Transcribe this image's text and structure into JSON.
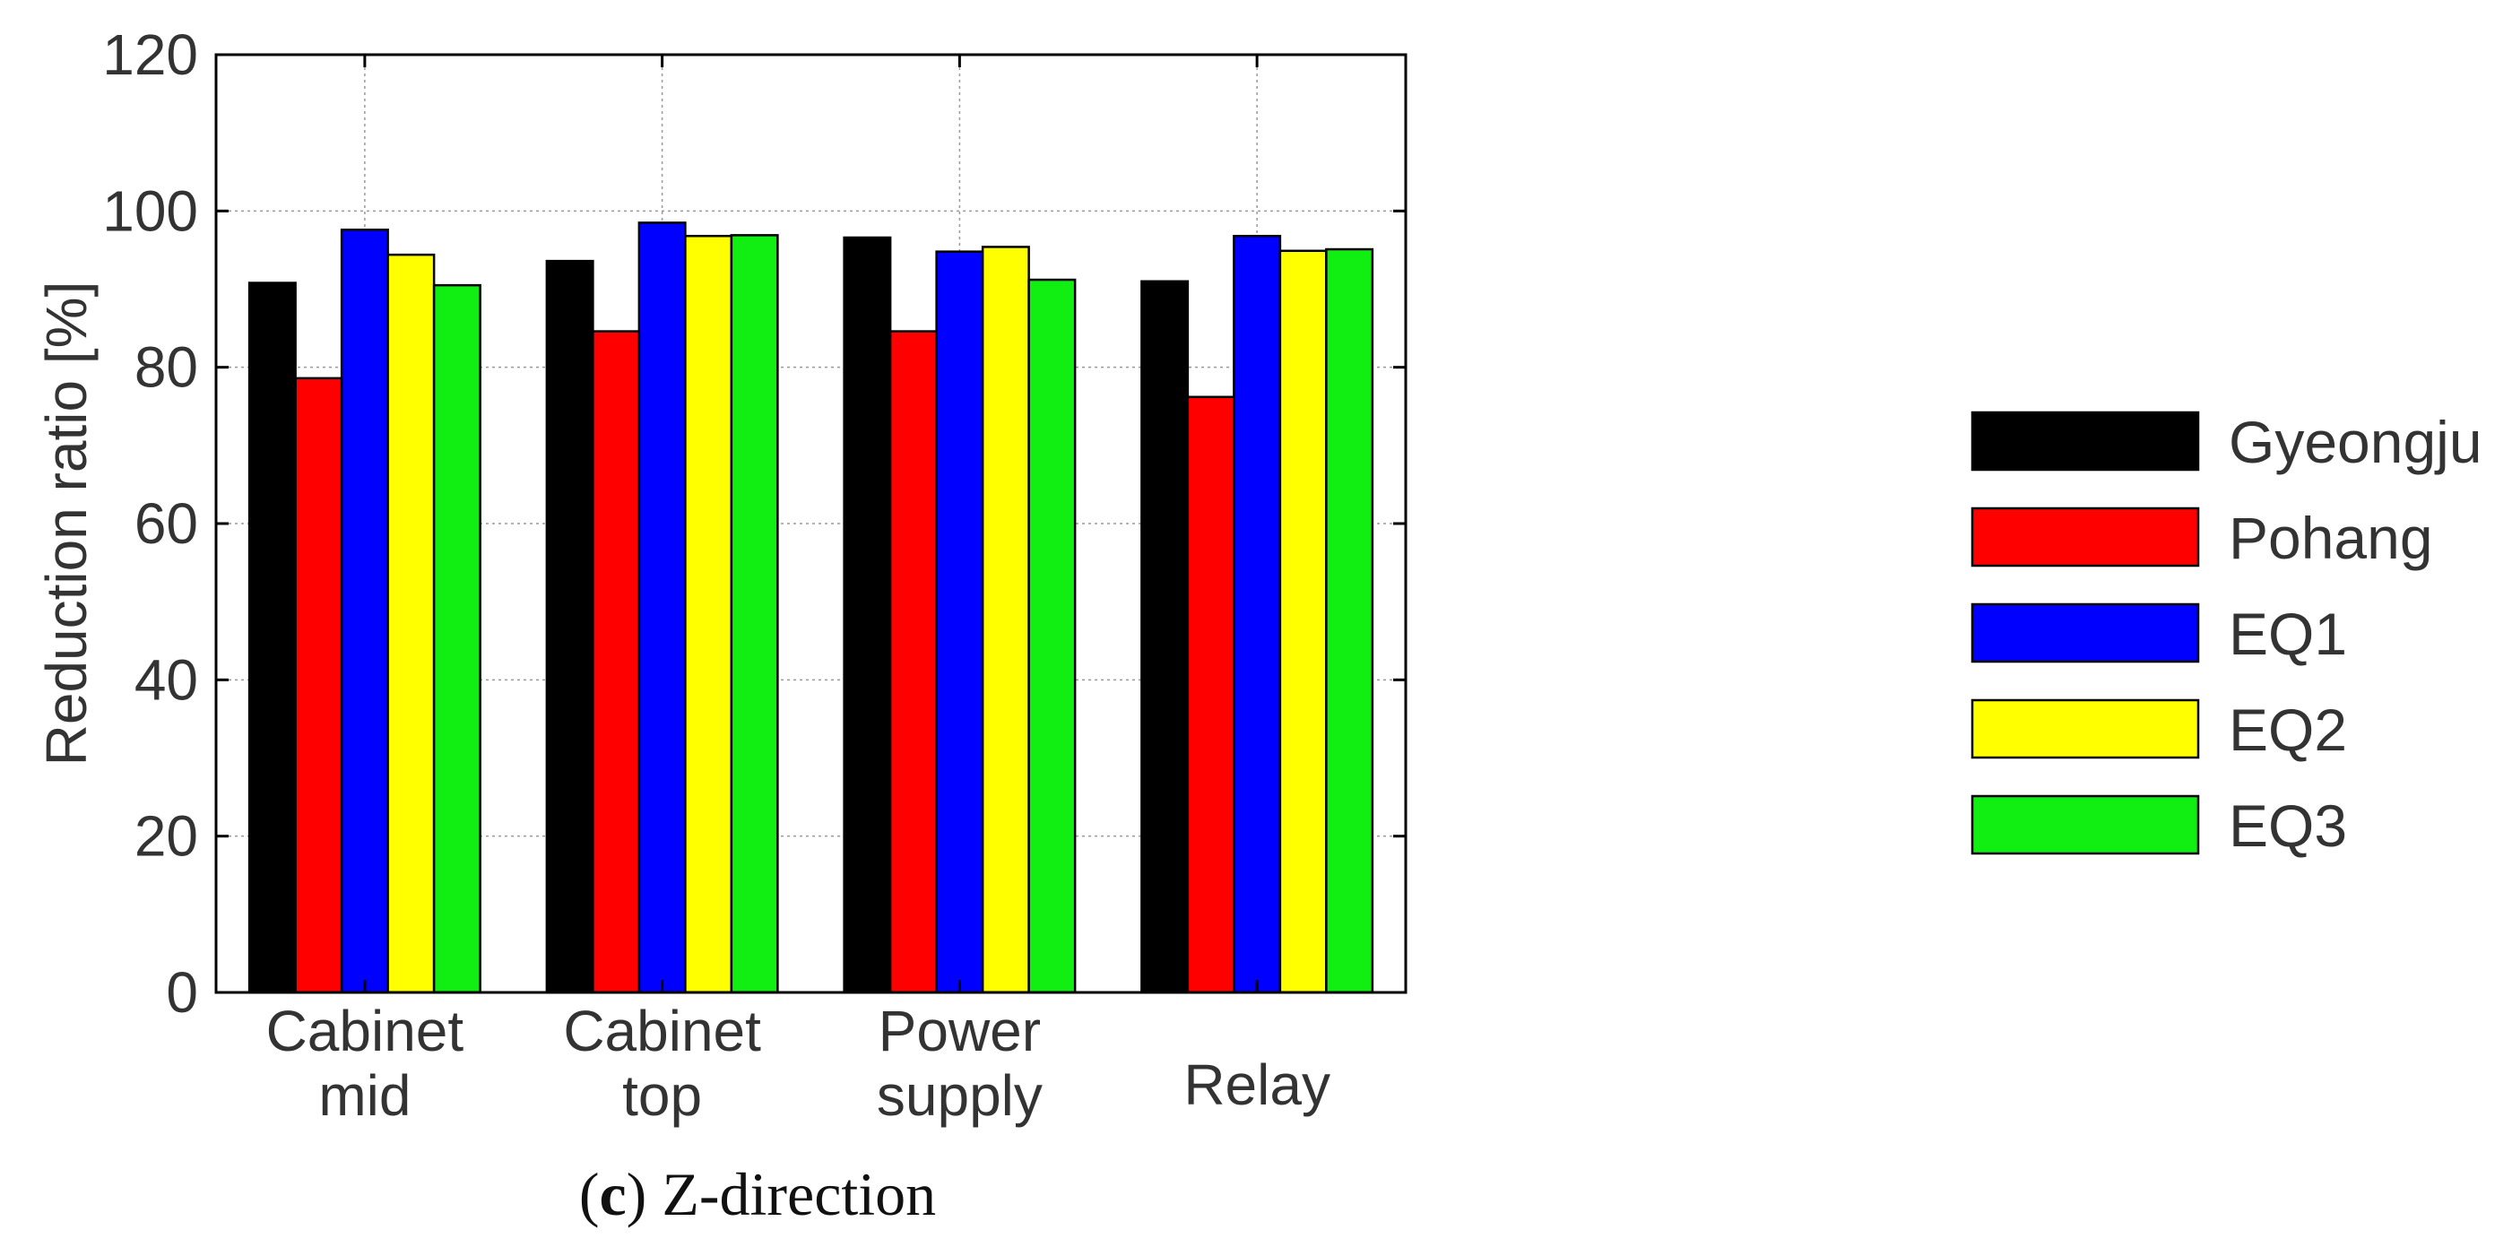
{
  "chart_data": {
    "type": "bar",
    "categories": [
      [
        "Cabinet",
        "mid"
      ],
      [
        "Cabinet",
        "top"
      ],
      [
        "Power",
        "supply"
      ],
      [
        "Relay"
      ]
    ],
    "series": [
      {
        "name": "Gyeongju",
        "color": "#000000",
        "values": [
          90.8,
          93.6,
          96.6,
          91.0
        ]
      },
      {
        "name": "Pohang",
        "color": "#ff0000",
        "values": [
          78.6,
          84.6,
          84.6,
          76.2
        ]
      },
      {
        "name": "EQ1",
        "color": "#0000ff",
        "values": [
          97.6,
          98.5,
          94.8,
          96.8
        ]
      },
      {
        "name": "EQ2",
        "color": "#ffff00",
        "values": [
          94.4,
          96.8,
          95.4,
          94.9
        ]
      },
      {
        "name": "EQ3",
        "color": "#11ee11",
        "values": [
          90.5,
          96.9,
          91.2,
          95.1
        ]
      }
    ],
    "ylabel": "Reduction ratio [%]",
    "ylim": [
      0,
      120
    ],
    "yticks": [
      0,
      20,
      40,
      60,
      80,
      100,
      120
    ],
    "grid": true,
    "legend": "right"
  },
  "caption": {
    "letter": "c",
    "text": " Z-direction"
  }
}
